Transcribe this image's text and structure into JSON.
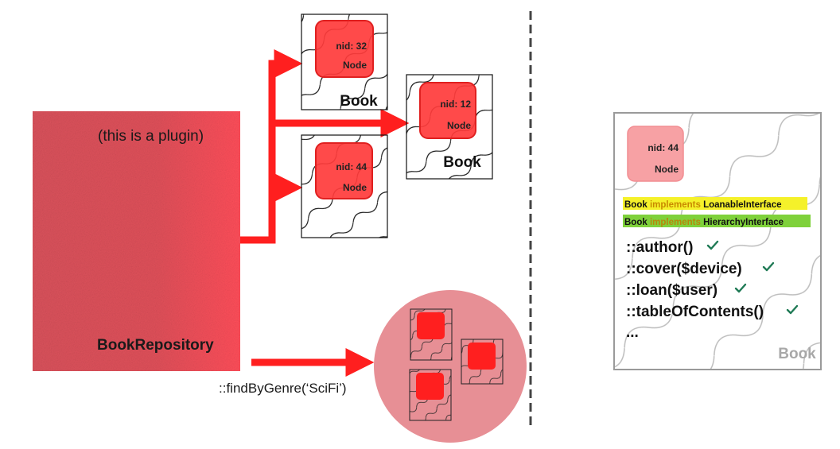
{
  "repository": {
    "plugin_note": "(this is a plugin)",
    "name": "BookRepository",
    "method": "::findByGenre(‘SciFi’)"
  },
  "books": [
    {
      "label": "Book",
      "node_id": "nid: 32",
      "node_label": "Node"
    },
    {
      "label": "Book",
      "node_id": "nid: 12",
      "node_label": "Node"
    },
    {
      "label": "Book",
      "node_id": "nid: 44",
      "node_label": "Node"
    }
  ],
  "detail": {
    "label": "Book",
    "node_id": "nid: 44",
    "node_label": "Node",
    "interfaces": [
      {
        "subject": "Book",
        "verb": "implements",
        "name": "LoanableInterface",
        "highlight": "#f5f12a",
        "verb_color": "#c98a00"
      },
      {
        "subject": "Book",
        "verb": "implements",
        "name": "HierarchyInterface",
        "highlight": "#7fd13b",
        "verb_color": "#b8860b"
      }
    ],
    "methods": [
      "::author()",
      "::cover($device)",
      "::loan($user)",
      "::tableOfContents()",
      "..."
    ],
    "check_icon": "check-icon"
  },
  "colors": {
    "accent_red": "#ff1f1f",
    "node_red": "#ff3b3b",
    "repo_fill": "#e05560",
    "result_circle": "#e78f95",
    "check_green": "#1f7a55",
    "divider": "#444444"
  }
}
